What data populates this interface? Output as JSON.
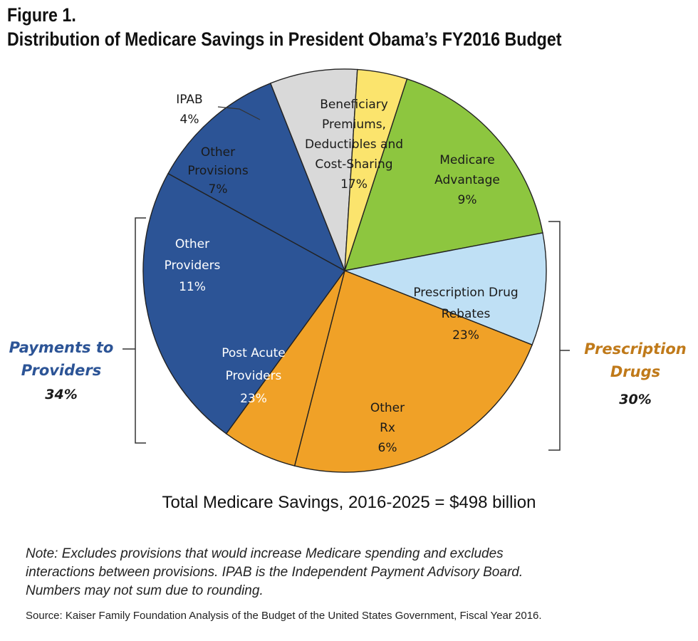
{
  "figure_label": "Figure 1.",
  "total_line": "Total Medicare Savings, 2016-2025 = $498 billion",
  "note_lines": [
    "Note: Excludes provisions that would increase Medicare spending and excludes",
    "interactions between provisions. IPAB is the Independent Payment Advisory Board.",
    "Numbers may not sum due to rounding."
  ],
  "source": "Source: Kaiser Family Foundation Analysis of the Budget of the United States Government, Fiscal Year 2016.",
  "chart_data": {
    "type": "pie",
    "title": "Distribution of Medicare Savings in President Obama’s FY2016 Budget",
    "unit": "%",
    "slices": [
      {
        "label_lines": [
          "Beneficiary",
          "Premiums,",
          "Deductibles and",
          "Cost-Sharing"
        ],
        "label": "Beneficiary Premiums, Deductibles and Cost-Sharing",
        "value": 17,
        "value_text": "17%",
        "color": "#8dc63f"
      },
      {
        "label_lines": [
          "Medicare",
          "Advantage"
        ],
        "label": "Medicare Advantage",
        "value": 9,
        "value_text": "9%",
        "color": "#bfe0f5"
      },
      {
        "label_lines": [
          "Prescription Drug",
          "Rebates"
        ],
        "label": "Prescription Drug Rebates",
        "value": 23,
        "value_text": "23%",
        "color": "#f0a127"
      },
      {
        "label_lines": [
          "Other",
          "Rx"
        ],
        "label": "Other Rx",
        "value": 6,
        "value_text": "6%",
        "color": "#f0a127"
      },
      {
        "label_lines": [
          "Post Acute",
          "Providers"
        ],
        "label": "Post Acute Providers",
        "value": 23,
        "value_text": "23%",
        "color": "#2c5496"
      },
      {
        "label_lines": [
          "Other",
          "Providers"
        ],
        "label": "Other Providers",
        "value": 11,
        "value_text": "11%",
        "color": "#2c5496"
      },
      {
        "label_lines": [
          "Other",
          "Provisions"
        ],
        "label": "Other Provisions",
        "value": 7,
        "value_text": "7%",
        "color": "#d9d9d9"
      },
      {
        "label_lines": [
          "IPAB"
        ],
        "label": "IPAB",
        "value": 4,
        "value_text": "4%",
        "color": "#fbe46d"
      }
    ],
    "groups": [
      {
        "name_lines": [
          "Payments to",
          "Providers"
        ],
        "name": "Payments to Providers",
        "value": 34,
        "value_text": "34%",
        "color": "#2c5496",
        "slices": [
          "Post Acute Providers",
          "Other Providers"
        ],
        "side": "left"
      },
      {
        "name_lines": [
          "Prescription",
          "Drugs"
        ],
        "name": "Prescription Drugs",
        "value": 30,
        "value_text": "30%",
        "color": "#c07a1a",
        "slices": [
          "Prescription Drug Rebates",
          "Other Rx"
        ],
        "side": "right"
      }
    ],
    "legend": "none"
  }
}
